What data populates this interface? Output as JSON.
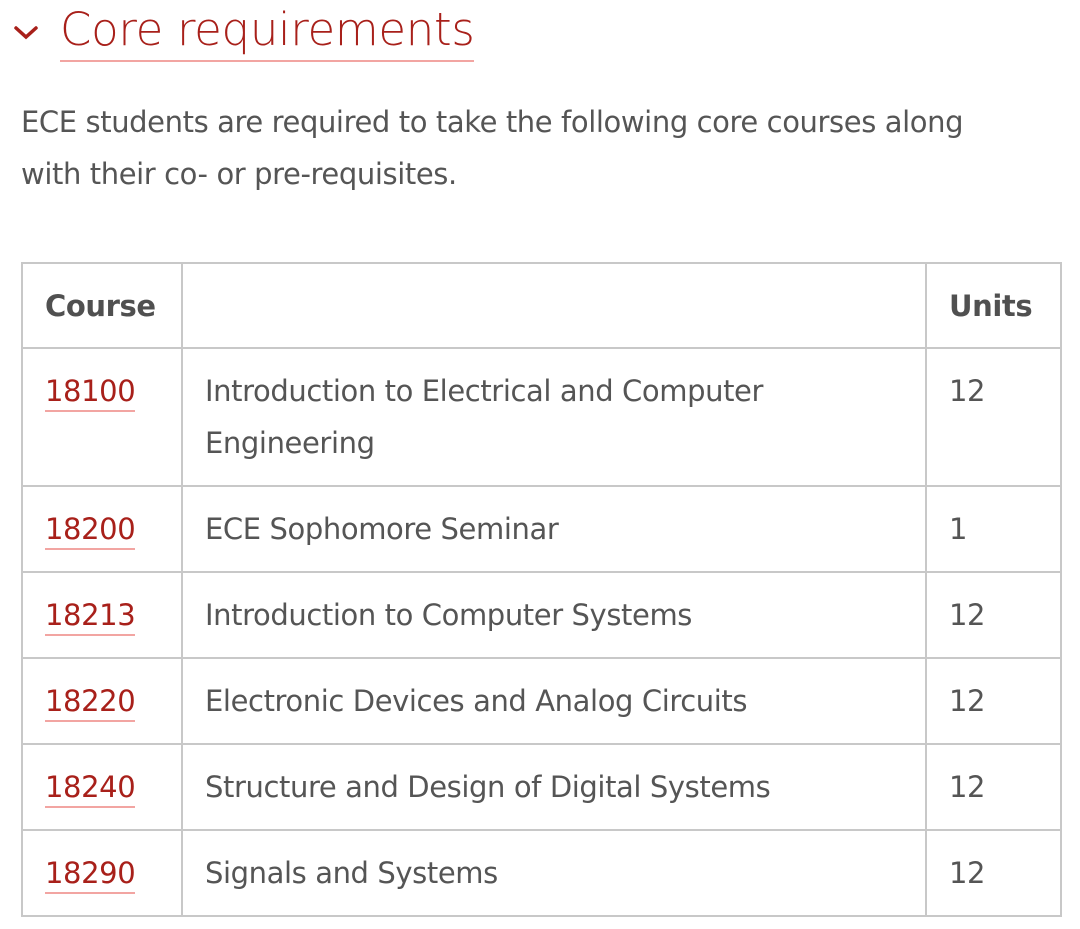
{
  "section": {
    "title": "Core requirements",
    "expanded": true,
    "intro": "ECE students are required to take the following core courses along with their co- or pre-requisites.",
    "accent": "#a8201a"
  },
  "table": {
    "headers": [
      "Course",
      "",
      "Units"
    ],
    "rows": [
      {
        "code": "18100",
        "name": "Introduction to Electrical and Computer Engineering",
        "units": "12"
      },
      {
        "code": "18200",
        "name": "ECE Sophomore Seminar",
        "units": "1"
      },
      {
        "code": "18213",
        "name": "Introduction to Computer Systems",
        "units": "12"
      },
      {
        "code": "18220",
        "name": "Electronic Devices and Analog Circuits",
        "units": "12"
      },
      {
        "code": "18240",
        "name": "Structure and Design of Digital Systems",
        "units": "12"
      },
      {
        "code": "18290",
        "name": "Signals and Systems",
        "units": "12"
      }
    ]
  }
}
